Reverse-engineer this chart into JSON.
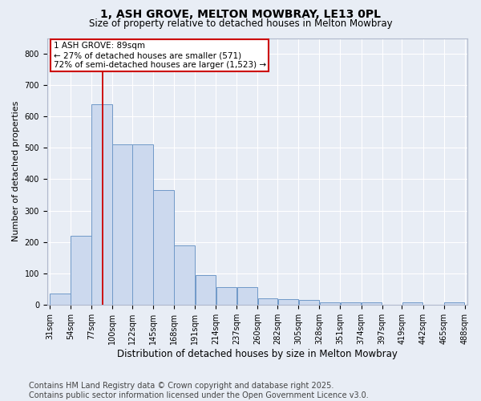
{
  "title": "1, ASH GROVE, MELTON MOWBRAY, LE13 0PL",
  "subtitle": "Size of property relative to detached houses in Melton Mowbray",
  "xlabel": "Distribution of detached houses by size in Melton Mowbray",
  "ylabel": "Number of detached properties",
  "bar_color": "#ccd9ee",
  "bar_edge_color": "#7099c8",
  "bg_color": "#e8edf5",
  "grid_color": "#ffffff",
  "vline_x": 89,
  "annotation_title": "1 ASH GROVE: 89sqm",
  "annotation_line1": "← 27% of detached houses are smaller (571)",
  "annotation_line2": "72% of semi-detached houses are larger (1,523) →",
  "annotation_box_color": "#ffffff",
  "annotation_box_edge": "#cc0000",
  "vline_color": "#cc0000",
  "bins": [
    31,
    54,
    77,
    100,
    122,
    145,
    168,
    191,
    214,
    237,
    260,
    282,
    305,
    328,
    351,
    374,
    397,
    419,
    442,
    465,
    488
  ],
  "values": [
    35,
    220,
    640,
    510,
    510,
    365,
    190,
    93,
    55,
    55,
    20,
    17,
    15,
    8,
    8,
    8,
    0,
    8,
    0,
    8
  ],
  "ylim": [
    0,
    850
  ],
  "yticks": [
    0,
    100,
    200,
    300,
    400,
    500,
    600,
    700,
    800
  ],
  "footer": "Contains HM Land Registry data © Crown copyright and database right 2025.\nContains public sector information licensed under the Open Government Licence v3.0.",
  "footer_fontsize": 7.0,
  "title_fontsize": 10,
  "subtitle_fontsize": 8.5,
  "ylabel_fontsize": 8,
  "xlabel_fontsize": 8.5,
  "tick_fontsize": 7
}
